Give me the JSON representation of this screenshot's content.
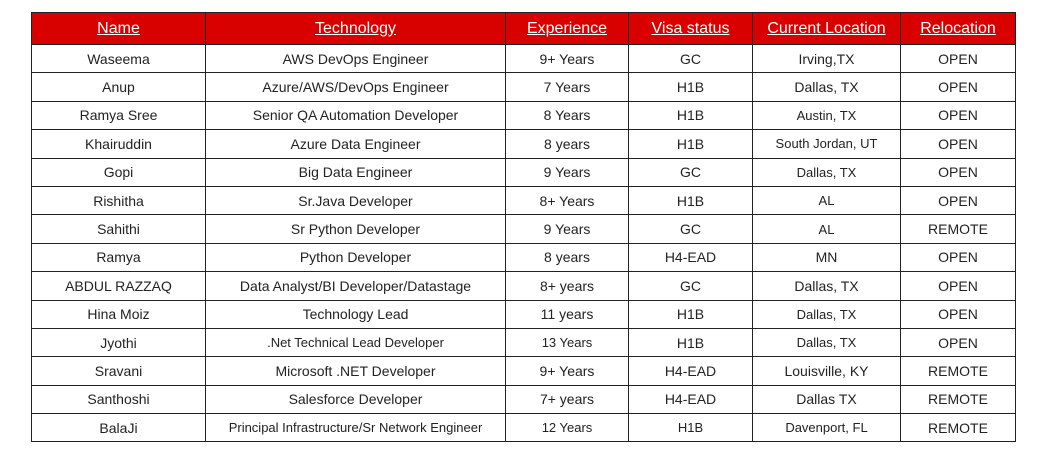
{
  "table": {
    "headers": [
      "Name",
      "Technology",
      "Experience",
      "Visa status",
      "Current Location",
      "Relocation"
    ],
    "header_color": "#d90000",
    "rows": [
      [
        "Waseema",
        "AWS DevOps Engineer",
        "9+ Years",
        "GC",
        "Irving,TX",
        "OPEN"
      ],
      [
        "Anup",
        "Azure/AWS/DevOps Engineer",
        "7 Years",
        "H1B",
        "Dallas, TX",
        "OPEN"
      ],
      [
        "Ramya Sree",
        "Senior QA Automation Developer",
        "8 Years",
        "H1B",
        "Austin, TX",
        "OPEN"
      ],
      [
        "Khairuddin",
        "Azure Data Engineer",
        "8 years",
        "H1B",
        "South Jordan, UT",
        "OPEN"
      ],
      [
        "Gopi",
        "Big Data Engineer",
        "9 Years",
        "GC",
        "Dallas, TX",
        "OPEN"
      ],
      [
        "Rishitha",
        "Sr.Java Developer",
        "8+ Years",
        "H1B",
        "AL",
        "OPEN"
      ],
      [
        "Sahithi",
        "Sr Python Developer",
        "9 Years",
        "GC",
        "AL",
        "REMOTE"
      ],
      [
        "Ramya",
        "Python Developer",
        "8 years",
        "H4-EAD",
        "MN",
        "OPEN"
      ],
      [
        "ABDUL RAZZAQ",
        "Data Analyst/BI Developer/Datastage",
        "8+ years",
        "GC",
        "Dallas, TX",
        "OPEN"
      ],
      [
        "Hina Moiz",
        "Technology Lead",
        "11 years",
        "H1B",
        "Dallas, TX",
        "OPEN"
      ],
      [
        "Jyothi",
        ".Net Technical Lead Developer",
        "13 Years",
        "H1B",
        "Dallas, TX",
        "OPEN"
      ],
      [
        "Sravani",
        "Microsoft .NET Developer",
        "9+ Years",
        "H4-EAD",
        "Louisville, KY",
        "REMOTE"
      ],
      [
        "Santhoshi",
        "Salesforce Developer",
        "7+ years",
        "H4-EAD",
        "Dallas TX",
        "REMOTE"
      ],
      [
        "BalaJi",
        "Principal Infrastructure/Sr Network Engineer",
        "12 Years",
        "H1B",
        "Davenport, FL",
        "REMOTE"
      ]
    ]
  }
}
